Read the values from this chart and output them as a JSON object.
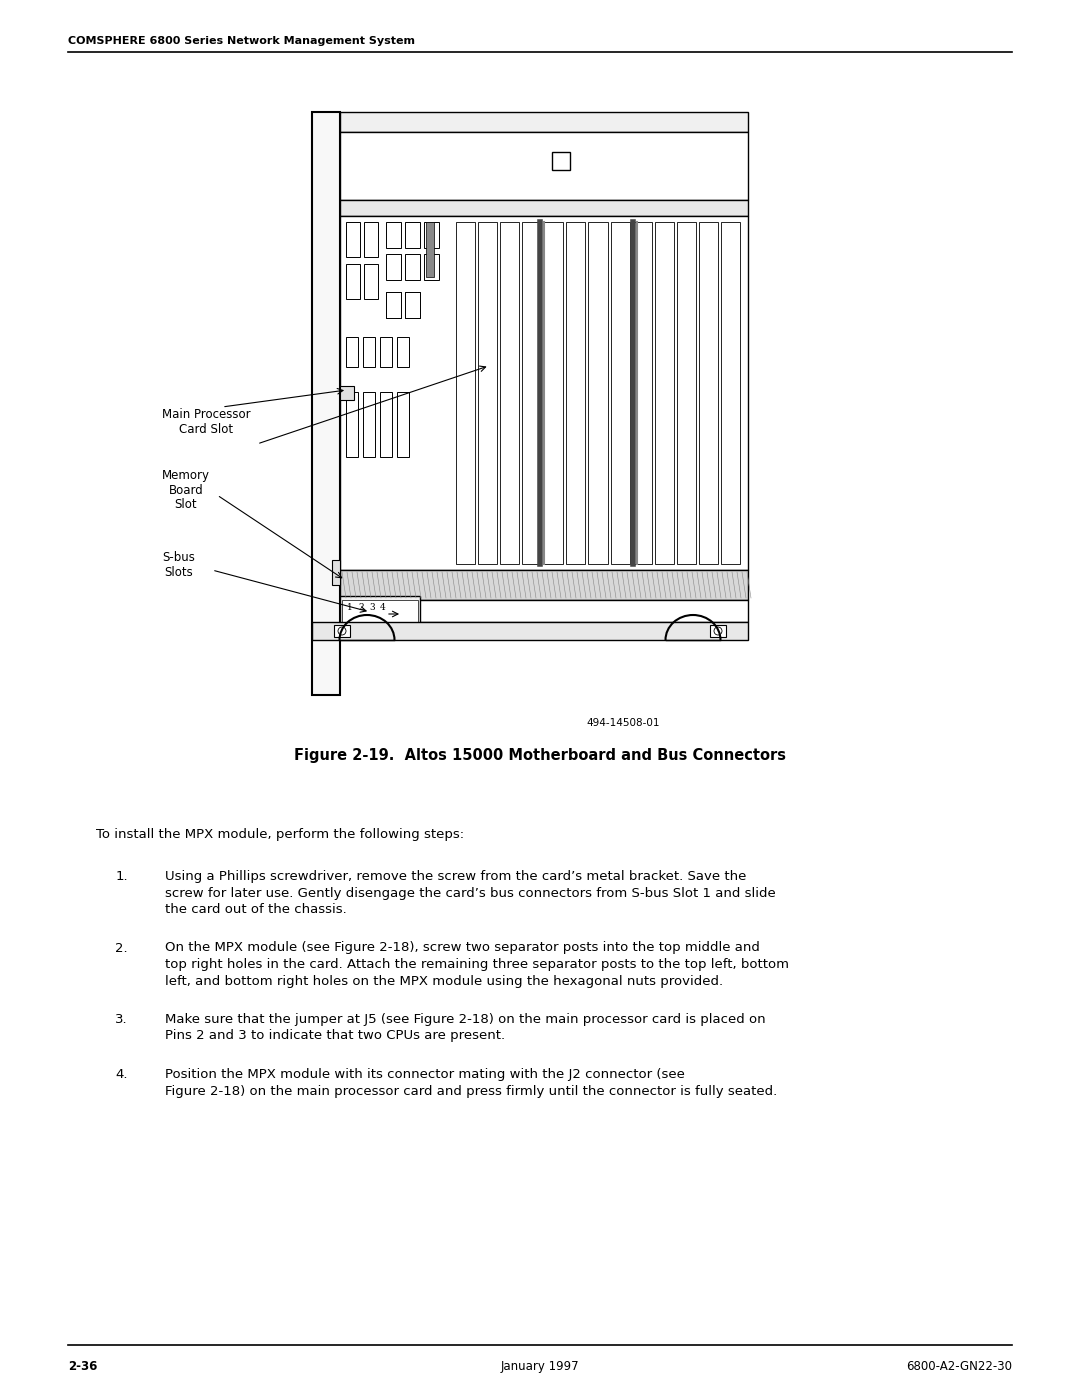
{
  "page_title": "COMSPHERE 6800 Series Network Management System",
  "footer_left": "2-36",
  "footer_center": "January 1997",
  "footer_right": "6800-A2-GN22-30",
  "figure_caption": "Figure 2-19.  Altos 15000 Motherboard and Bus Connectors",
  "figure_number": "494-14508-01",
  "intro_text": "To install the MPX module, perform the following steps:",
  "steps": [
    "Using a Phillips screwdriver, remove the screw from the card’s metal bracket. Save the\nscrew for later use. Gently disengage the card’s bus connectors from S-bus Slot 1 and slide\nthe card out of the chassis.",
    "On the MPX module (see Figure 2-18), screw two separator posts into the top middle and\ntop right holes in the card. Attach the remaining three separator posts to the top left, bottom\nleft, and bottom right holes on the MPX module using the hexagonal nuts provided.",
    "Make sure that the jumper at J5 (see Figure 2-18) on the main processor card is placed on\nPins 2 and 3 to indicate that two CPUs are present.",
    "Position the MPX module with its connector mating with the J2 connector (see\nFigure 2-18) on the main processor card and press firmly until the connector is fully seated."
  ],
  "bg_color": "#ffffff",
  "text_color": "#000000",
  "line_color": "#000000"
}
